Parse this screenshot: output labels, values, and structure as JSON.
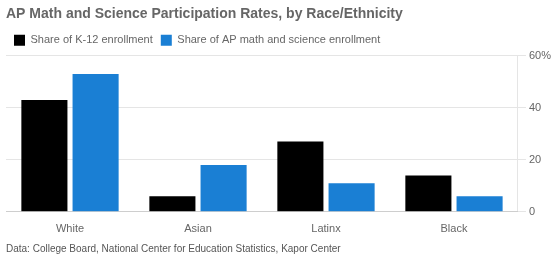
{
  "chart_data": {
    "type": "bar",
    "title": "AP Math and Science Participation Rates, by Race/Ethnicity",
    "annotations": [
      "Data: College Board, National Center for Education Statistics, Kapor Center"
    ],
    "categories": [
      "White",
      "Asian",
      "Latinx",
      "Black"
    ],
    "series": [
      {
        "name": "Share of K-12 enrollment",
        "color": "#000000",
        "values": [
          43,
          6,
          27,
          14
        ]
      },
      {
        "name": "Share of AP math and science enrollment",
        "color": "#1a7fd4",
        "values": [
          53,
          18,
          11,
          6
        ]
      }
    ],
    "ylim": [
      0,
      60
    ],
    "yticks": [
      0,
      20,
      40,
      {
        "value": 60,
        "label": "60%"
      }
    ],
    "grid": true,
    "legend": "upper left"
  }
}
